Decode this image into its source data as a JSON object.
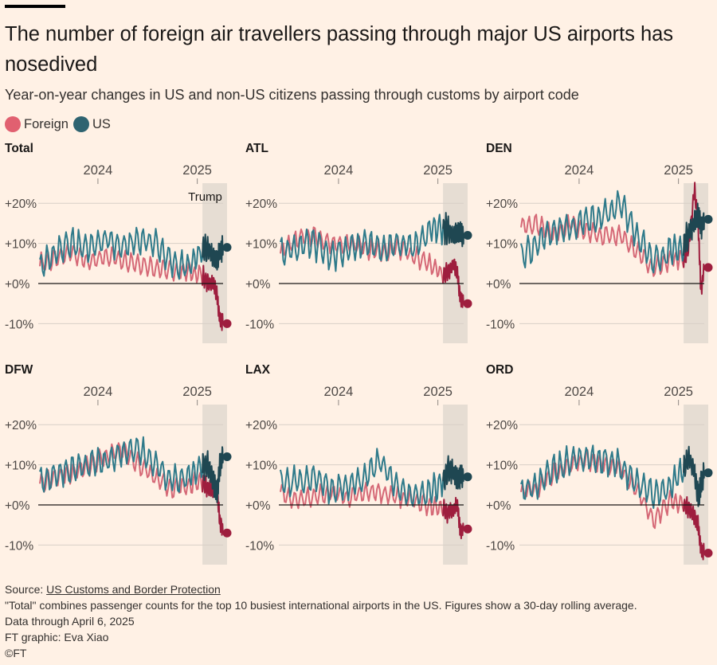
{
  "title": "The number of foreign air travellers passing through major US airports has nosedived",
  "subtitle": "Year-on-year changes in US and non-US citizens passing through customs by airport code",
  "legend": [
    {
      "label": "Foreign",
      "color": "#E16070"
    },
    {
      "label": "US",
      "color": "#2E6370"
    }
  ],
  "colors": {
    "foreign_line": "#D56876",
    "foreign_recent": "#9E1E3E",
    "us_line": "#2F7A8A",
    "us_recent": "#1F4752",
    "shade": "#E6DDD3",
    "grid": "#D8CFC7",
    "zero": "#1A1817"
  },
  "annotation": "Trump",
  "footer": {
    "source_prefix": "Source: ",
    "source_link": "US Customs and Border Protection",
    "note": "\"Total\" combines passenger counts for the top 10 busiest international airports in the US. Figures show a 30-day rolling average.",
    "data_through": "Data through April 6, 2025",
    "credit": "FT graphic: Eva Xiao",
    "copyright": "©FT"
  },
  "chart_data": [
    {
      "type": "line",
      "panel": "Total",
      "x_ticks": [
        "2024",
        "2025"
      ],
      "y_ticks": [
        "+20%",
        "+10%",
        "+0%",
        "-10%"
      ],
      "ylim": [
        -11,
        25
      ],
      "shaded_period": {
        "label": "Trump",
        "start": "2025-01-20",
        "end": "2025-04-06"
      },
      "series": [
        {
          "name": "Foreign",
          "points": [
            [
              "2023-06-01",
              5
            ],
            [
              "2023-08-01",
              6
            ],
            [
              "2023-10-01",
              8
            ],
            [
              "2023-12-01",
              5
            ],
            [
              "2024-02-01",
              7
            ],
            [
              "2024-04-01",
              6
            ],
            [
              "2024-06-01",
              5
            ],
            [
              "2024-08-01",
              4
            ],
            [
              "2024-10-01",
              3
            ],
            [
              "2024-12-01",
              3
            ],
            [
              "2025-01-20",
              2
            ],
            [
              "2025-02-10",
              0
            ],
            [
              "2025-03-01",
              0
            ],
            [
              "2025-03-15",
              -3
            ],
            [
              "2025-03-25",
              -9
            ],
            [
              "2025-04-06",
              -10
            ]
          ]
        },
        {
          "name": "US",
          "points": [
            [
              "2023-06-01",
              4
            ],
            [
              "2023-08-01",
              8
            ],
            [
              "2023-10-01",
              10
            ],
            [
              "2023-12-01",
              9
            ],
            [
              "2024-02-01",
              11
            ],
            [
              "2024-04-01",
              9
            ],
            [
              "2024-06-01",
              11
            ],
            [
              "2024-08-01",
              10
            ],
            [
              "2024-10-01",
              5
            ],
            [
              "2024-12-01",
              4
            ],
            [
              "2025-01-20",
              8
            ],
            [
              "2025-02-10",
              9
            ],
            [
              "2025-03-01",
              7
            ],
            [
              "2025-03-15",
              6
            ],
            [
              "2025-03-25",
              8
            ],
            [
              "2025-04-06",
              9
            ]
          ]
        }
      ]
    },
    {
      "type": "line",
      "panel": "ATL",
      "x_ticks": [
        "2024",
        "2025"
      ],
      "y_ticks": [
        "+20%",
        "+10%",
        "+0%",
        "-10%"
      ],
      "ylim": [
        -11,
        25
      ],
      "shaded_period": {
        "start": "2025-01-20",
        "end": "2025-04-06"
      },
      "series": [
        {
          "name": "Foreign",
          "points": [
            [
              "2023-06-01",
              8
            ],
            [
              "2023-08-01",
              11
            ],
            [
              "2023-10-01",
              12
            ],
            [
              "2023-12-01",
              10
            ],
            [
              "2024-02-01",
              10
            ],
            [
              "2024-04-01",
              9
            ],
            [
              "2024-06-01",
              8
            ],
            [
              "2024-08-01",
              9
            ],
            [
              "2024-10-01",
              7
            ],
            [
              "2024-12-01",
              5
            ],
            [
              "2025-01-20",
              2
            ],
            [
              "2025-02-10",
              3
            ],
            [
              "2025-03-01",
              5
            ],
            [
              "2025-03-15",
              2
            ],
            [
              "2025-03-25",
              -4
            ],
            [
              "2025-04-06",
              -5
            ]
          ]
        },
        {
          "name": "US",
          "points": [
            [
              "2023-06-01",
              8
            ],
            [
              "2023-08-01",
              9
            ],
            [
              "2023-10-01",
              10
            ],
            [
              "2023-12-01",
              7
            ],
            [
              "2024-02-01",
              8
            ],
            [
              "2024-04-01",
              10
            ],
            [
              "2024-06-01",
              9
            ],
            [
              "2024-08-01",
              10
            ],
            [
              "2024-10-01",
              9
            ],
            [
              "2024-12-01",
              13
            ],
            [
              "2025-01-20",
              14
            ],
            [
              "2025-02-10",
              13
            ],
            [
              "2025-03-01",
              12
            ],
            [
              "2025-03-15",
              13
            ],
            [
              "2025-03-25",
              12
            ],
            [
              "2025-04-06",
              12
            ]
          ]
        }
      ]
    },
    {
      "type": "line",
      "panel": "DEN",
      "x_ticks": [
        "2024",
        "2025"
      ],
      "y_ticks": [
        "+20%",
        "+10%",
        "+0%",
        "-10%"
      ],
      "ylim": [
        -11,
        25
      ],
      "shaded_period": {
        "start": "2025-01-20",
        "end": "2025-04-06"
      },
      "series": [
        {
          "name": "Foreign",
          "points": [
            [
              "2023-06-01",
              14
            ],
            [
              "2023-08-01",
              15
            ],
            [
              "2023-10-01",
              12
            ],
            [
              "2023-12-01",
              15
            ],
            [
              "2024-02-01",
              13
            ],
            [
              "2024-04-01",
              12
            ],
            [
              "2024-06-01",
              12
            ],
            [
              "2024-08-01",
              8
            ],
            [
              "2024-10-01",
              4
            ],
            [
              "2024-12-01",
              6
            ],
            [
              "2025-01-20",
              6
            ],
            [
              "2025-02-10",
              10
            ],
            [
              "2025-03-01",
              24
            ],
            [
              "2025-03-15",
              14
            ],
            [
              "2025-03-25",
              -2
            ],
            [
              "2025-04-06",
              4
            ]
          ]
        },
        {
          "name": "US",
          "points": [
            [
              "2023-06-01",
              7
            ],
            [
              "2023-08-01",
              10
            ],
            [
              "2023-10-01",
              13
            ],
            [
              "2023-12-01",
              14
            ],
            [
              "2024-02-01",
              16
            ],
            [
              "2024-04-01",
              17
            ],
            [
              "2024-06-01",
              20
            ],
            [
              "2024-08-01",
              12
            ],
            [
              "2024-10-01",
              5
            ],
            [
              "2024-12-01",
              8
            ],
            [
              "2025-01-20",
              9
            ],
            [
              "2025-02-10",
              13
            ],
            [
              "2025-03-01",
              15
            ],
            [
              "2025-03-15",
              17
            ],
            [
              "2025-03-25",
              14
            ],
            [
              "2025-04-06",
              16
            ]
          ]
        }
      ]
    },
    {
      "type": "line",
      "panel": "DFW",
      "x_ticks": [
        "2024",
        "2025"
      ],
      "y_ticks": [
        "+20%",
        "+10%",
        "+0%",
        "-10%"
      ],
      "ylim": [
        -11,
        25
      ],
      "shaded_period": {
        "start": "2025-01-20",
        "end": "2025-04-06"
      },
      "series": [
        {
          "name": "Foreign",
          "points": [
            [
              "2023-06-01",
              5
            ],
            [
              "2023-08-01",
              7
            ],
            [
              "2023-10-01",
              8
            ],
            [
              "2023-12-01",
              10
            ],
            [
              "2024-02-01",
              12
            ],
            [
              "2024-04-01",
              14
            ],
            [
              "2024-06-01",
              10
            ],
            [
              "2024-08-01",
              7
            ],
            [
              "2024-10-01",
              4
            ],
            [
              "2024-12-01",
              5
            ],
            [
              "2025-01-20",
              6
            ],
            [
              "2025-02-10",
              4
            ],
            [
              "2025-03-01",
              4
            ],
            [
              "2025-03-15",
              3
            ],
            [
              "2025-03-25",
              -4
            ],
            [
              "2025-04-06",
              -7
            ]
          ]
        },
        {
          "name": "US",
          "points": [
            [
              "2023-06-01",
              6
            ],
            [
              "2023-08-01",
              8
            ],
            [
              "2023-10-01",
              9
            ],
            [
              "2023-12-01",
              10
            ],
            [
              "2024-02-01",
              11
            ],
            [
              "2024-04-01",
              13
            ],
            [
              "2024-06-01",
              14
            ],
            [
              "2024-08-01",
              10
            ],
            [
              "2024-10-01",
              6
            ],
            [
              "2024-12-01",
              7
            ],
            [
              "2025-01-20",
              10
            ],
            [
              "2025-02-10",
              10
            ],
            [
              "2025-03-01",
              6
            ],
            [
              "2025-03-15",
              3
            ],
            [
              "2025-03-25",
              10
            ],
            [
              "2025-04-06",
              12
            ]
          ]
        }
      ]
    },
    {
      "type": "line",
      "panel": "LAX",
      "x_ticks": [
        "2024",
        "2025"
      ],
      "y_ticks": [
        "+20%",
        "+10%",
        "+0%",
        "-10%"
      ],
      "ylim": [
        -11,
        25
      ],
      "shaded_period": {
        "start": "2025-01-20",
        "end": "2025-04-06"
      },
      "series": [
        {
          "name": "Foreign",
          "points": [
            [
              "2023-06-01",
              3
            ],
            [
              "2023-08-01",
              1
            ],
            [
              "2023-10-01",
              2
            ],
            [
              "2023-12-01",
              3
            ],
            [
              "2024-02-01",
              2
            ],
            [
              "2024-04-01",
              3
            ],
            [
              "2024-06-01",
              3
            ],
            [
              "2024-08-01",
              2
            ],
            [
              "2024-10-01",
              1
            ],
            [
              "2024-12-01",
              0
            ],
            [
              "2025-01-20",
              -1
            ],
            [
              "2025-02-10",
              -2
            ],
            [
              "2025-03-01",
              -1
            ],
            [
              "2025-03-15",
              0
            ],
            [
              "2025-03-25",
              -7
            ],
            [
              "2025-04-06",
              -6
            ]
          ]
        },
        {
          "name": "US",
          "points": [
            [
              "2023-06-01",
              5
            ],
            [
              "2023-08-01",
              6
            ],
            [
              "2023-10-01",
              7
            ],
            [
              "2023-12-01",
              4
            ],
            [
              "2024-02-01",
              5
            ],
            [
              "2024-04-01",
              6
            ],
            [
              "2024-06-01",
              11
            ],
            [
              "2024-08-01",
              5
            ],
            [
              "2024-10-01",
              2
            ],
            [
              "2024-12-01",
              3
            ],
            [
              "2025-01-20",
              6
            ],
            [
              "2025-02-10",
              9
            ],
            [
              "2025-03-01",
              8
            ],
            [
              "2025-03-15",
              6
            ],
            [
              "2025-03-25",
              7
            ],
            [
              "2025-04-06",
              7
            ]
          ]
        }
      ]
    },
    {
      "type": "line",
      "panel": "ORD",
      "x_ticks": [
        "2024",
        "2025"
      ],
      "y_ticks": [
        "+20%",
        "+10%",
        "+0%",
        "-10%"
      ],
      "ylim": [
        -11,
        25
      ],
      "shaded_period": {
        "start": "2025-01-20",
        "end": "2025-04-06"
      },
      "series": [
        {
          "name": "Foreign",
          "points": [
            [
              "2023-06-01",
              3
            ],
            [
              "2023-08-01",
              4
            ],
            [
              "2023-10-01",
              8
            ],
            [
              "2023-12-01",
              10
            ],
            [
              "2024-02-01",
              11
            ],
            [
              "2024-04-01",
              10
            ],
            [
              "2024-06-01",
              9
            ],
            [
              "2024-08-01",
              4
            ],
            [
              "2024-10-01",
              -4
            ],
            [
              "2024-12-01",
              1
            ],
            [
              "2025-01-20",
              0
            ],
            [
              "2025-02-10",
              -1
            ],
            [
              "2025-03-01",
              -3
            ],
            [
              "2025-03-15",
              -5
            ],
            [
              "2025-03-25",
              -11
            ],
            [
              "2025-04-06",
              -12
            ]
          ]
        },
        {
          "name": "US",
          "points": [
            [
              "2023-06-01",
              3
            ],
            [
              "2023-08-01",
              5
            ],
            [
              "2023-10-01",
              9
            ],
            [
              "2023-12-01",
              11
            ],
            [
              "2024-02-01",
              12
            ],
            [
              "2024-04-01",
              11
            ],
            [
              "2024-06-01",
              10
            ],
            [
              "2024-08-01",
              5
            ],
            [
              "2024-10-01",
              3
            ],
            [
              "2024-12-01",
              4
            ],
            [
              "2025-01-20",
              9
            ],
            [
              "2025-02-10",
              12
            ],
            [
              "2025-03-01",
              8
            ],
            [
              "2025-03-15",
              2
            ],
            [
              "2025-03-25",
              5
            ],
            [
              "2025-04-06",
              8
            ]
          ]
        }
      ]
    }
  ]
}
